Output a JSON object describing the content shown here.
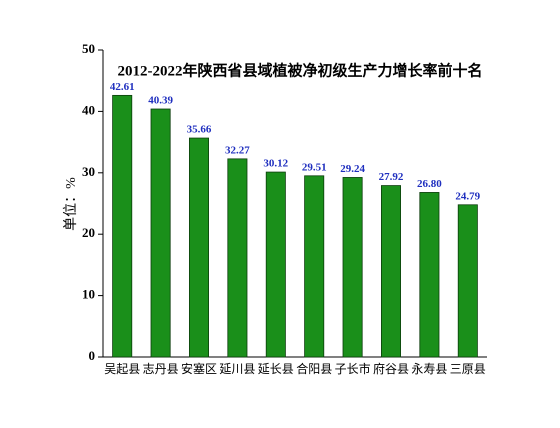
{
  "chart_data": {
    "type": "bar",
    "title": "2012-2022年陕西省县域植被净初级生产力增长率前十名",
    "y_label": "单位：%",
    "categories": [
      "吴起县",
      "志丹县",
      "安塞区",
      "延川县",
      "延长县",
      "合阳县",
      "子长市",
      "府谷县",
      "永寿县",
      "三原县"
    ],
    "values": [
      42.61,
      40.39,
      35.66,
      32.27,
      30.12,
      29.51,
      29.24,
      27.92,
      26.8,
      24.79
    ],
    "value_labels": [
      "42.61",
      "40.39",
      "35.66",
      "32.27",
      "30.12",
      "29.51",
      "29.24",
      "27.92",
      "26.80",
      "24.79"
    ],
    "color": "#1a8f1a",
    "ylim": [
      0,
      50
    ],
    "yticks": [
      0,
      10,
      20,
      30,
      40,
      50
    ],
    "grid": false
  }
}
